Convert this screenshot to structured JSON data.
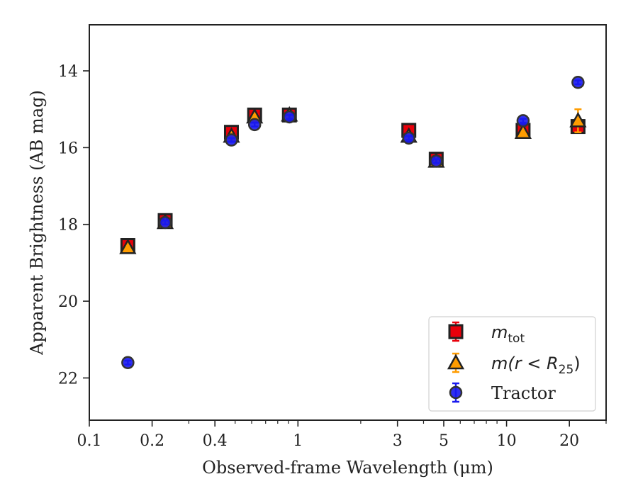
{
  "chart_data": {
    "type": "scatter",
    "xlabel": "Observed-frame Wavelength (μm)",
    "ylabel": "Apparent Brightness (AB mag)",
    "xscale": "log",
    "xlim": [
      0.1,
      30
    ],
    "ylim": [
      23.1,
      12.8
    ],
    "y_inverted": true,
    "x_ticks": [
      0.1,
      0.2,
      0.4,
      1,
      3,
      5,
      10,
      20
    ],
    "x_tick_labels": [
      "0.1",
      "0.2",
      "0.4",
      "1",
      "3",
      "5",
      "10",
      "20"
    ],
    "y_ticks": [
      14,
      16,
      18,
      20,
      22
    ],
    "y_tick_labels": [
      "14",
      "16",
      "18",
      "20",
      "22"
    ],
    "grid": false,
    "legend_position": "lower-right",
    "series": [
      {
        "name": "m_tot",
        "legend_main": "m",
        "legend_sub": "tot",
        "marker": "square",
        "color": "#e8000b",
        "edgecolor": "#222222",
        "x": [
          0.153,
          0.231,
          0.48,
          0.62,
          0.91,
          3.4,
          4.6,
          12.0,
          22.0
        ],
        "y": [
          18.55,
          17.9,
          15.6,
          15.15,
          15.15,
          15.55,
          16.3,
          15.55,
          15.45
        ],
        "yerr": [
          0.05,
          0.05,
          0.05,
          0.05,
          0.05,
          0.05,
          0.05,
          0.05,
          0.05
        ]
      },
      {
        "name": "m(r < R25)",
        "legend_main": "m(r < R",
        "legend_sub": "25",
        "legend_tail": ")",
        "marker": "triangle",
        "color": "#ff9c00",
        "edgecolor": "#222222",
        "x": [
          0.153,
          0.231,
          0.48,
          0.62,
          0.91,
          3.4,
          4.6,
          12.0,
          22.0
        ],
        "y": [
          18.6,
          17.95,
          15.7,
          15.2,
          15.15,
          15.7,
          16.35,
          15.6,
          15.3
        ],
        "yerr": [
          0.05,
          0.05,
          0.05,
          0.05,
          0.05,
          0.05,
          0.05,
          0.05,
          0.3
        ]
      },
      {
        "name": "Tractor",
        "marker": "circle",
        "color": "#1a1aee",
        "edgecolor": "#333333",
        "x": [
          0.153,
          0.231,
          0.48,
          0.62,
          0.91,
          3.4,
          4.6,
          12.0,
          22.0
        ],
        "y": [
          21.6,
          17.95,
          15.8,
          15.4,
          15.2,
          15.75,
          16.35,
          15.3,
          14.3
        ],
        "yerr": [
          0.05,
          0.05,
          0.05,
          0.05,
          0.05,
          0.05,
          0.05,
          0.05,
          0.05
        ]
      }
    ]
  }
}
